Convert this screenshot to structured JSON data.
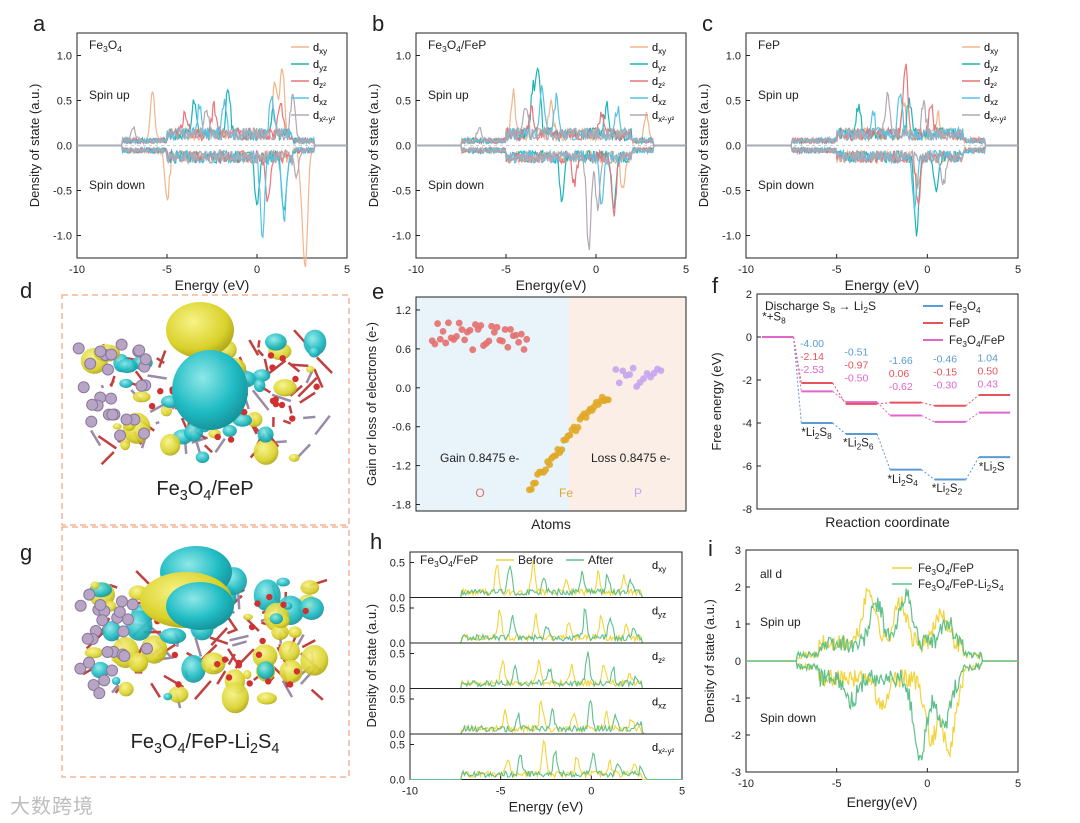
{
  "figure": {
    "panels": {
      "a": {
        "letter": "a",
        "title": "Fe3O4",
        "up_label": "Spin up",
        "down_label": "Spin down",
        "xlabel": "Energy (eV)",
        "ylabel": "Density of state (a.u.)"
      },
      "b": {
        "letter": "b",
        "title": "Fe3O4/FeP",
        "up_label": "Spin up",
        "down_label": "Spin down",
        "xlabel": "Energy(eV)",
        "ylabel": "Density of state (a.u.)"
      },
      "c": {
        "letter": "c",
        "title": "FeP",
        "up_label": "Spin up",
        "down_label": "Spin down",
        "xlabel": "Energy (eV)",
        "ylabel": "Density of state (a.u.)"
      },
      "d": {
        "letter": "d",
        "caption": "Fe3O4/FeP"
      },
      "e": {
        "letter": "e",
        "xlabel": "Atoms",
        "ylabel": "Gain or loss of electrons (e-)",
        "gain_text": "Gain 0.8475 e-",
        "loss_text": "Loss 0.8475 e-",
        "groups": [
          "O",
          "Fe",
          "P"
        ]
      },
      "f": {
        "letter": "f",
        "xlabel": "Reaction coordinate",
        "ylabel": "Free energy (eV)",
        "title": "Discharge S8 → Li2S"
      },
      "g": {
        "letter": "g",
        "caption": "Fe3O4/FeP-Li2S4"
      },
      "h": {
        "letter": "h",
        "title": "Fe3O4/FeP",
        "xlabel": "Energy (eV)",
        "ylabel": "Density of state (a.u.)",
        "orbitals": [
          "dxy",
          "dyz",
          "dz2",
          "dxz",
          "dx2-y2"
        ]
      },
      "i": {
        "letter": "i",
        "title": "all d",
        "up_label": "Spin up",
        "down_label": "Spin down",
        "xlabel": "Energy(eV)",
        "ylabel": "Density of state (a.u.)"
      }
    },
    "watermark": "大数跨境"
  },
  "colors": {
    "dxy": "#f2b58a",
    "dyz": "#1bb5b5",
    "dz2": "#e8757a",
    "dxz": "#56c3e6",
    "dx2y2": "#b1a8b2",
    "fe3o4": "#5b9bd5",
    "fep": "#e8525a",
    "hetero": "#e066cc",
    "before": "#f2d43a",
    "after": "#5fc08a"
  },
  "chart_data": [
    {
      "panel": "a",
      "type": "line",
      "title": "Fe3O4",
      "xlabel": "Energy (eV)",
      "ylabel": "Density of state (a.u.)",
      "xlim": [
        -10,
        5
      ],
      "ylim": [
        -1.25,
        1.25
      ],
      "xticks": [
        -10,
        -5,
        0,
        5
      ],
      "yticks": [
        -1.0,
        -0.5,
        0.0,
        0.5,
        1.0
      ],
      "series_names": [
        "dxy",
        "dyz",
        "dz2",
        "dxz",
        "dx2-y2"
      ],
      "peaks": {
        "dxy": [
          [
            -5.8,
            0.55
          ],
          [
            -5.0,
            -0.5
          ],
          [
            1.0,
            0.6
          ],
          [
            1.4,
            0.75
          ],
          [
            2.5,
            -0.45
          ],
          [
            2.7,
            -1.2
          ]
        ],
        "dyz": [
          [
            -3.5,
            0.35
          ],
          [
            -1.6,
            0.5
          ],
          [
            0.0,
            -0.6
          ],
          [
            0.9,
            0.3
          ],
          [
            1.5,
            -0.6
          ]
        ],
        "dz2": [
          [
            -4.0,
            0.25
          ],
          [
            -2.4,
            0.3
          ],
          [
            0.6,
            -0.5
          ],
          [
            1.3,
            0.35
          ]
        ],
        "dxz": [
          [
            -3.2,
            0.3
          ],
          [
            -1.8,
            0.4
          ],
          [
            0.3,
            -0.88
          ],
          [
            0.8,
            0.4
          ],
          [
            1.5,
            -0.7
          ]
        ],
        "dx2-y2": [
          [
            -6.9,
            0.15
          ],
          [
            -2.8,
            0.3
          ],
          [
            2.0,
            0.5
          ],
          [
            2.2,
            -0.3
          ]
        ]
      }
    },
    {
      "panel": "b",
      "type": "line",
      "title": "Fe3O4/FeP",
      "xlabel": "Energy(eV)",
      "ylabel": "Density of state (a.u.)",
      "xlim": [
        -10,
        5
      ],
      "ylim": [
        -1.25,
        1.25
      ],
      "xticks": [
        -10,
        -5,
        0,
        5
      ],
      "yticks": [
        -1.0,
        -0.5,
        0.0,
        0.5,
        1.0
      ],
      "series_names": [
        "dxy",
        "dyz",
        "dz2",
        "dxz",
        "dx2-y2"
      ],
      "peaks": {
        "dxy": [
          [
            -4.6,
            0.45
          ],
          [
            -2.5,
            0.4
          ],
          [
            1.5,
            -0.4
          ],
          [
            2.8,
            0.3
          ]
        ],
        "dyz": [
          [
            -3.2,
            0.75
          ],
          [
            -3.5,
            0.5
          ],
          [
            -1.9,
            -0.45
          ],
          [
            0.6,
            0.35
          ],
          [
            1.0,
            -0.55
          ]
        ],
        "dz2": [
          [
            -3.6,
            0.3
          ],
          [
            -1.2,
            -0.3
          ],
          [
            1.0,
            -0.65
          ],
          [
            0.3,
            0.2
          ]
        ],
        "dxz": [
          [
            -3.0,
            0.55
          ],
          [
            -2.2,
            0.4
          ],
          [
            0.3,
            -0.5
          ],
          [
            1.2,
            0.3
          ]
        ],
        "dx2-y2": [
          [
            -6.5,
            0.15
          ],
          [
            -3.9,
            0.35
          ],
          [
            -0.4,
            -1.05
          ],
          [
            0.1,
            -0.6
          ]
        ]
      }
    },
    {
      "panel": "c",
      "type": "line",
      "title": "FeP",
      "xlabel": "Energy (eV)",
      "ylabel": "Density of state (a.u.)",
      "xlim": [
        -10,
        5
      ],
      "ylim": [
        -1.25,
        1.25
      ],
      "xticks": [
        -10,
        -5,
        0,
        5
      ],
      "yticks": [
        -1.0,
        -0.5,
        0.0,
        0.5,
        1.0
      ],
      "series_names": [
        "dxy",
        "dyz",
        "dz2",
        "dxz",
        "dx2-y2"
      ],
      "peaks": {
        "dxy": [
          [
            -1.3,
            0.35
          ],
          [
            -0.5,
            -0.35
          ],
          [
            0.6,
            0.2
          ]
        ],
        "dyz": [
          [
            -3.8,
            0.3
          ],
          [
            -0.6,
            -0.9
          ],
          [
            -1.0,
            0.4
          ],
          [
            0.5,
            -0.35
          ]
        ],
        "dz2": [
          [
            -1.2,
            0.78
          ],
          [
            -0.5,
            -0.55
          ],
          [
            0.2,
            0.3
          ]
        ],
        "dxz": [
          [
            -1.5,
            0.45
          ],
          [
            -0.7,
            -0.6
          ],
          [
            -3.0,
            0.25
          ]
        ],
        "dx2-y2": [
          [
            -2.2,
            0.4
          ],
          [
            -0.2,
            0.35
          ],
          [
            0.9,
            -0.3
          ]
        ]
      }
    },
    {
      "panel": "e",
      "type": "scatter",
      "title": "",
      "xlabel": "Atoms",
      "ylabel": "Gain or loss of electrons (e-)",
      "ylim": [
        -1.9,
        1.4
      ],
      "yticks": [
        -1.8,
        -1.2,
        -0.6,
        0.0,
        0.6,
        1.2
      ],
      "groups": [
        {
          "name": "O",
          "count": 36,
          "range": [
            0.58,
            1.02
          ]
        },
        {
          "name": "Fe",
          "count": 40,
          "range": [
            -1.55,
            -0.2
          ]
        },
        {
          "name": "P",
          "count": 14,
          "range": [
            0.0,
            0.32
          ]
        }
      ]
    },
    {
      "panel": "f",
      "type": "line",
      "title": "Discharge S8 → Li2S",
      "xlabel": "Reaction coordinate",
      "ylabel": "Free energy (eV)",
      "ylim": [
        -8,
        2
      ],
      "yticks": [
        -8,
        -6,
        -4,
        -2,
        0,
        2
      ],
      "steps": [
        "*+S8",
        "*Li2S8",
        "*Li2S6",
        "*Li2S4",
        "*Li2S2",
        "*Li2S"
      ],
      "series": [
        {
          "name": "Fe3O4",
          "values": [
            0.0,
            -4.0,
            -4.51,
            -6.17,
            -6.63,
            -5.59
          ],
          "deltas": [
            "-4.00",
            "-0.51",
            "-1.66",
            "-0.46",
            "1.04"
          ]
        },
        {
          "name": "FeP",
          "values": [
            0.0,
            -2.14,
            -3.11,
            -3.05,
            -3.2,
            -2.7
          ],
          "deltas": [
            "-2.14",
            "-0.97",
            "0.06",
            "-0.15",
            "0.50"
          ]
        },
        {
          "name": "Fe3O4/FeP",
          "values": [
            0.0,
            -2.53,
            -3.03,
            -3.65,
            -3.95,
            -3.52
          ],
          "deltas": [
            "-2.53",
            "-0.50",
            "-0.62",
            "-0.30",
            "0.43"
          ]
        }
      ]
    },
    {
      "panel": "h",
      "type": "line",
      "title": "Fe3O4/FeP",
      "xlabel": "Energy (eV)",
      "ylabel": "Density of state (a.u.)",
      "xlim": [
        -10,
        5
      ],
      "xticks": [
        -10,
        -5,
        0,
        5
      ],
      "subplot_ylim": [
        0,
        0.65
      ],
      "subplot_yticks": [
        0.0,
        0.5
      ],
      "series_names": [
        "Before",
        "After"
      ],
      "orbitals": [
        "dxy",
        "dyz",
        "dz2",
        "dxz",
        "dx2-y2"
      ]
    },
    {
      "panel": "i",
      "type": "line",
      "title": "all d",
      "xlabel": "Energy(eV)",
      "ylabel": "Density of state (a.u.)",
      "xlim": [
        -10,
        5
      ],
      "ylim": [
        -3,
        3
      ],
      "xticks": [
        -10,
        -5,
        0,
        5
      ],
      "yticks": [
        -3,
        -2,
        -1,
        0,
        1,
        2,
        3
      ],
      "series": [
        {
          "name": "Fe3O4/FeP",
          "peaks_up": [
            [
              -3.2,
              1.45
            ],
            [
              -1.5,
              1.1
            ],
            [
              0.8,
              0.9
            ]
          ],
          "peaks_down": [
            [
              0.2,
              -1.6
            ],
            [
              1.2,
              -1.9
            ],
            [
              -2.5,
              -0.7
            ]
          ]
        },
        {
          "name": "Fe3O4/FeP-Li2S4",
          "peaks_up": [
            [
              -1.2,
              1.35
            ],
            [
              -2.8,
              1.1
            ],
            [
              1.1,
              0.6
            ]
          ],
          "peaks_down": [
            [
              -0.4,
              -2.15
            ],
            [
              0.9,
              -1.4
            ],
            [
              -4.2,
              -0.6
            ]
          ]
        }
      ]
    }
  ]
}
